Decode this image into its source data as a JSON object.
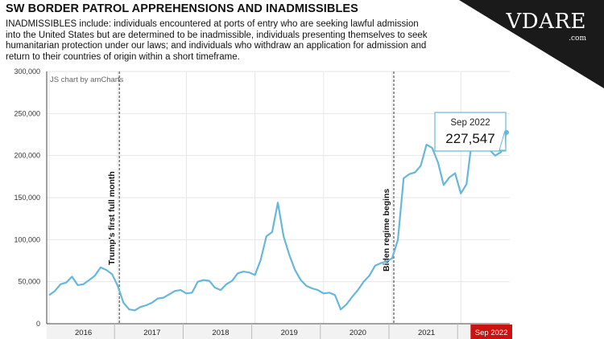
{
  "header": {
    "title": "SW BORDER PATROL APPREHENSIONS AND INADMISSIBLES",
    "subtitle": "INADMISSIBLES include: individuals encountered at ports of entry who are seeking lawful admission into the United States but are determined to be inadmissible, individuals presenting themselves to seek humanitarian protection under our laws; and individuals who withdraw an application for admission and return to their countries of origin within a short timeframe."
  },
  "brand": {
    "name": "VDARE",
    "suffix": ".com"
  },
  "chart_data": {
    "type": "line",
    "credit": "JS chart by amCharts",
    "ylim": [
      0,
      300000
    ],
    "y_ticks": [
      0,
      50000,
      100000,
      150000,
      200000,
      250000,
      300000
    ],
    "y_tick_labels": [
      "0",
      "50,000",
      "100,000",
      "150,000",
      "200,000",
      "250,000",
      "300,000"
    ],
    "x_categories": [
      "2016",
      "2017",
      "2018",
      "2019",
      "2020",
      "2021",
      "Sep 2022"
    ],
    "highlighted_category": "Sep 2022",
    "highlight_color": "#cc1111",
    "line_color": "#67b7dc",
    "series": [
      {
        "name": "Apprehensions and Inadmissibles",
        "x": [
          "2016-01",
          "2016-02",
          "2016-03",
          "2016-04",
          "2016-05",
          "2016-06",
          "2016-07",
          "2016-08",
          "2016-09",
          "2016-10",
          "2016-11",
          "2016-12",
          "2017-01",
          "2017-02",
          "2017-03",
          "2017-04",
          "2017-05",
          "2017-06",
          "2017-07",
          "2017-08",
          "2017-09",
          "2017-10",
          "2017-11",
          "2017-12",
          "2018-01",
          "2018-02",
          "2018-03",
          "2018-04",
          "2018-05",
          "2018-06",
          "2018-07",
          "2018-08",
          "2018-09",
          "2018-10",
          "2018-11",
          "2018-12",
          "2019-01",
          "2019-02",
          "2019-03",
          "2019-04",
          "2019-05",
          "2019-06",
          "2019-07",
          "2019-08",
          "2019-09",
          "2019-10",
          "2019-11",
          "2019-12",
          "2020-01",
          "2020-02",
          "2020-03",
          "2020-04",
          "2020-05",
          "2020-06",
          "2020-07",
          "2020-08",
          "2020-09",
          "2020-10",
          "2020-11",
          "2020-12",
          "2021-01",
          "2021-02",
          "2021-03",
          "2021-04",
          "2021-05",
          "2021-06",
          "2021-07",
          "2021-08",
          "2021-09",
          "2021-10",
          "2021-11",
          "2021-12",
          "2022-01",
          "2022-02",
          "2022-03",
          "2022-04",
          "2022-05",
          "2022-06",
          "2022-07",
          "2022-08",
          "2022-09"
        ],
        "values": [
          34000,
          39000,
          47000,
          49000,
          56000,
          46000,
          47000,
          52000,
          57000,
          67000,
          64000,
          59000,
          45000,
          25000,
          17000,
          16000,
          20000,
          22000,
          25000,
          30000,
          31000,
          35000,
          39000,
          40000,
          36000,
          37000,
          50000,
          52000,
          51000,
          43000,
          40000,
          47000,
          51000,
          60000,
          62000,
          61000,
          58000,
          76000,
          104000,
          109000,
          144000,
          104000,
          82000,
          64000,
          52000,
          45000,
          42000,
          40000,
          36000,
          37000,
          34000,
          17000,
          23000,
          32000,
          40000,
          50000,
          57000,
          69000,
          72000,
          74000,
          78000,
          100000,
          173000,
          178000,
          180000,
          188000,
          213000,
          209000,
          192000,
          165000,
          174000,
          179000,
          155000,
          166000,
          222000,
          235000,
          241000,
          207000,
          200000,
          204000,
          227547
        ]
      }
    ],
    "annotations": [
      {
        "x": "2017-01",
        "label": "Trump's first full month"
      },
      {
        "x": "2021-01",
        "label": "Biden regime begins"
      }
    ],
    "tooltip": {
      "x": "2022-09",
      "label": "Sep 2022",
      "value": "227,547"
    }
  }
}
